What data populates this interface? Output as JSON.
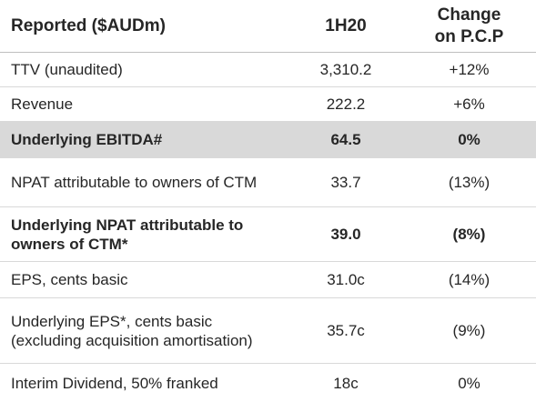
{
  "header": {
    "label": "Reported ($AUDm)",
    "period": "1H20",
    "change": "Change on P.C.P"
  },
  "rows": [
    {
      "label": "TTV (unaudited)",
      "value": "3,310.2",
      "change": "+12%"
    },
    {
      "label": "Revenue",
      "value": "222.2",
      "change": "+6%"
    },
    {
      "label": "Underlying EBITDA#",
      "value": "64.5",
      "change": "0%"
    },
    {
      "label": "NPAT attributable to owners of CTM",
      "value": "33.7",
      "change": "(13%)"
    },
    {
      "label": "Underlying NPAT attributable to owners of CTM*",
      "value": "39.0",
      "change": "(8%)"
    },
    {
      "label": "EPS, cents basic",
      "value": "31.0c",
      "change": "(14%)"
    },
    {
      "label": "Underlying EPS*, cents basic (excluding acquisition amortisation)",
      "value": "35.7c",
      "change": "(9%)"
    },
    {
      "label": "Interim Dividend, 50% franked",
      "value": "18c",
      "change": "0%"
    }
  ]
}
